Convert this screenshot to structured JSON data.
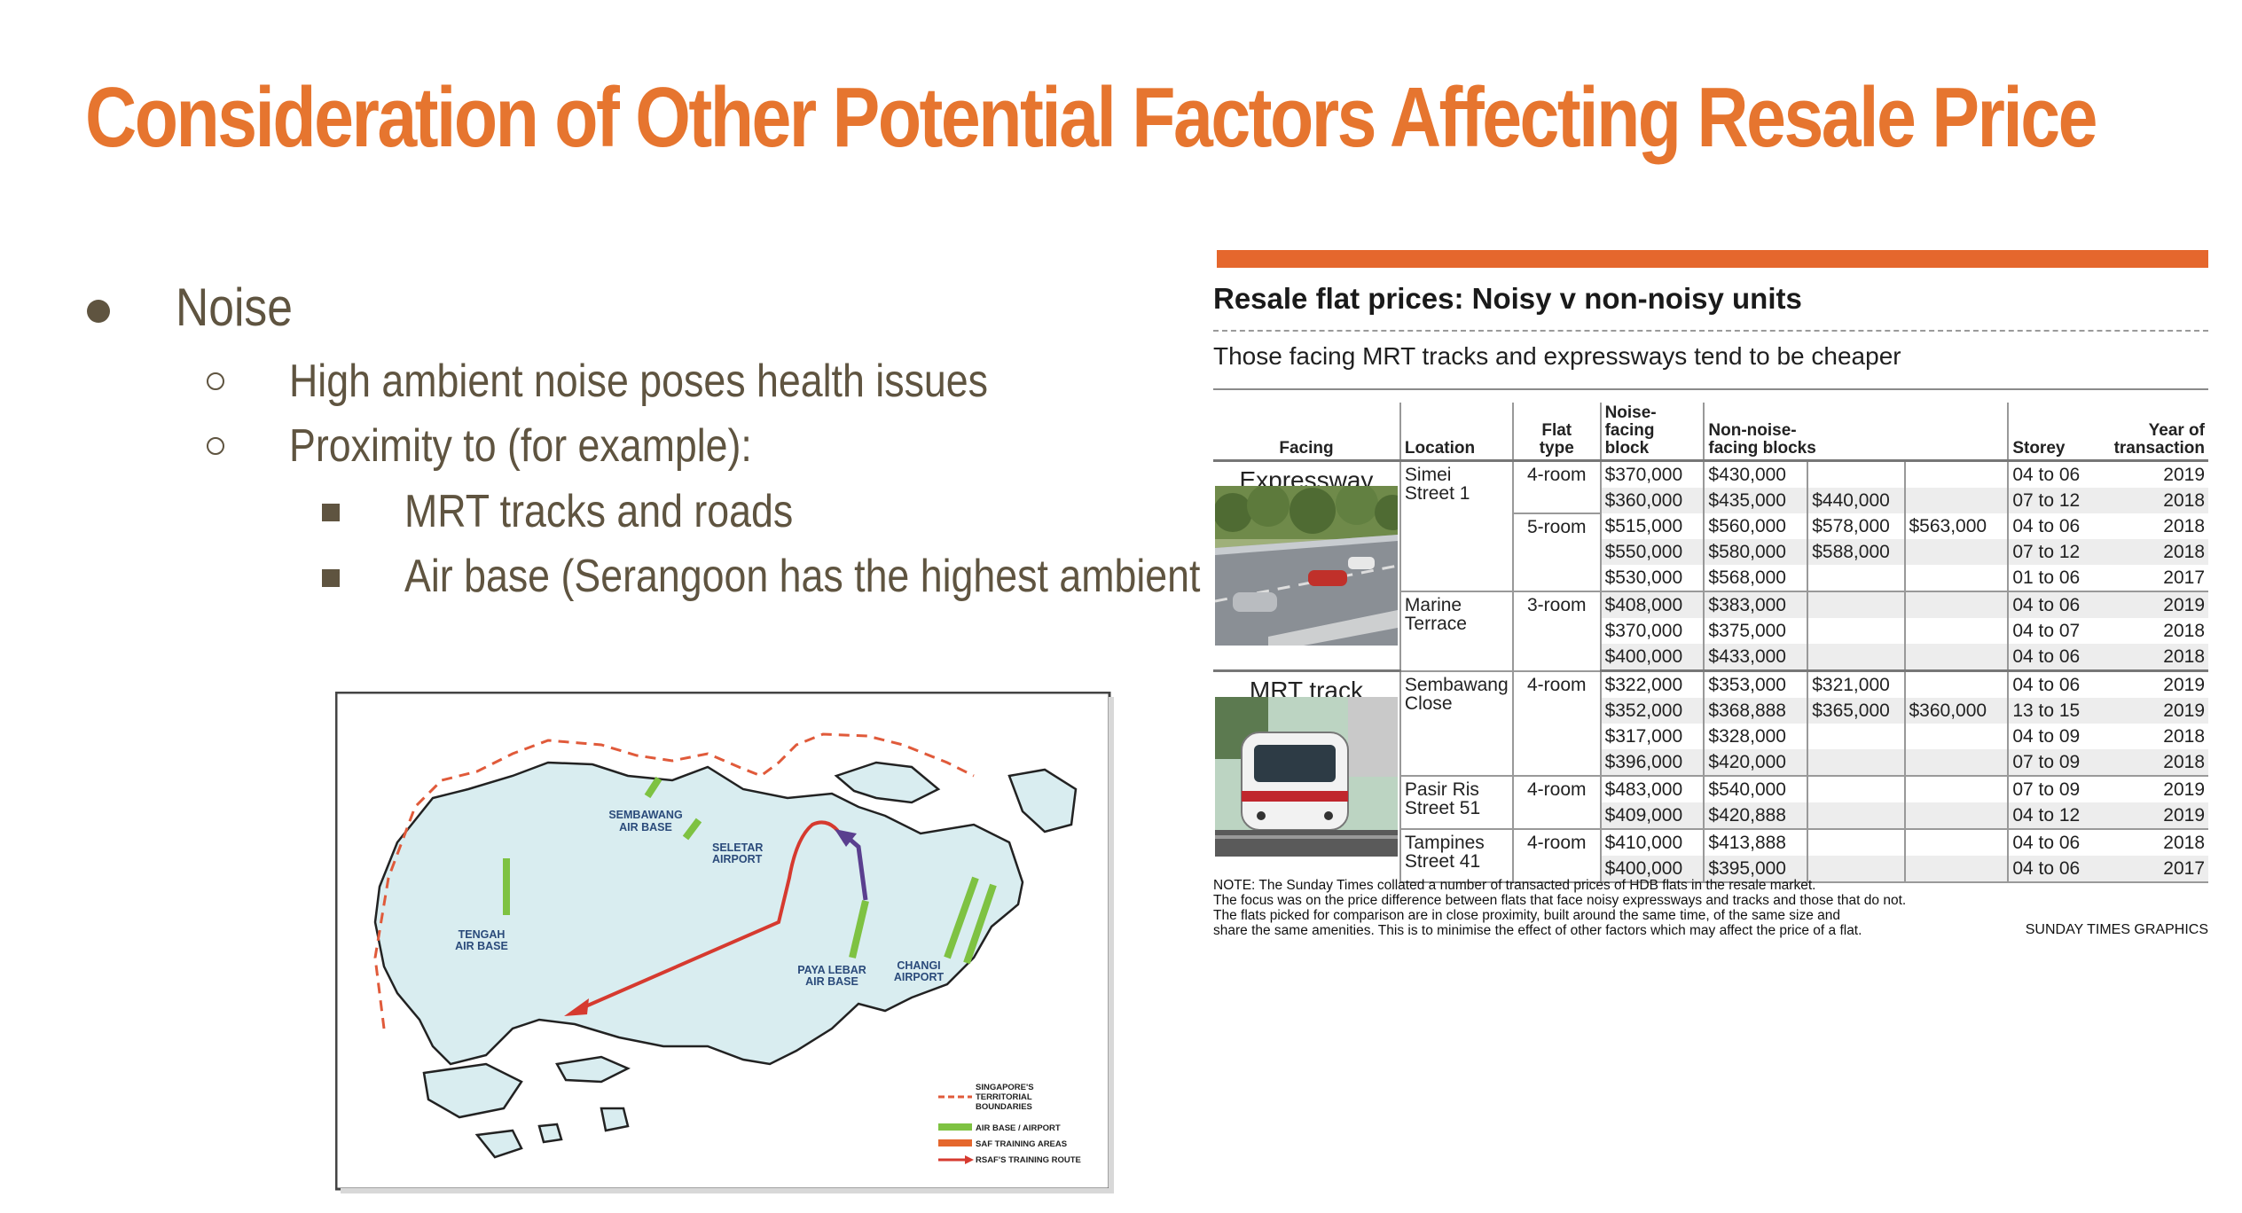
{
  "slide": {
    "title": "Consideration of Other Potential Factors Affecting Resale Price",
    "bullets": [
      {
        "level": 1,
        "text": "Noise"
      },
      {
        "level": 2,
        "text": "High ambient noise poses health issues"
      },
      {
        "level": 2,
        "text": "Proximity to (for example):"
      },
      {
        "level": 3,
        "text": "MRT tracks and roads"
      },
      {
        "level": 3,
        "text": "Air base (Serangoon has the highest ambient nois"
      }
    ]
  },
  "colors": {
    "title": "#e6752f",
    "text": "#5f5440",
    "bar": "#e5672d"
  },
  "article": {
    "heading": "Resale flat prices: Noisy v non-noisy units",
    "subheading": "Those facing MRT tracks and expressways tend to be cheaper",
    "headers": {
      "facing": "Facing",
      "location": "Location",
      "flat_type_1": "Flat",
      "flat_type_2": "type",
      "noise_1": "Noise-",
      "noise_2": "facing block",
      "nonnoise_1": "Non-noise-",
      "nonnoise_2": "facing blocks",
      "storey": "Storey",
      "year_1": "Year of",
      "year_2": "transaction"
    },
    "facing_labels": [
      "Expressway",
      "MRT track"
    ],
    "rows": [
      [
        "$370,000",
        "$430,000",
        "",
        "",
        "04 to 06",
        "2019"
      ],
      [
        "$360,000",
        "$435,000",
        "$440,000",
        "",
        "07 to 12",
        "2018"
      ],
      [
        "$515,000",
        "$560,000",
        "$578,000",
        "$563,000",
        "04 to 06",
        "2018"
      ],
      [
        "$550,000",
        "$580,000",
        "$588,000",
        "",
        "07 to 12",
        "2018"
      ],
      [
        "$530,000",
        "$568,000",
        "",
        "",
        "01 to 06",
        "2017"
      ],
      [
        "$408,000",
        "$383,000",
        "",
        "",
        "04 to 06",
        "2019"
      ],
      [
        "$370,000",
        "$375,000",
        "",
        "",
        "04 to 07",
        "2018"
      ],
      [
        "$400,000",
        "$433,000",
        "",
        "",
        "04 to 06",
        "2018"
      ],
      [
        "$322,000",
        "$353,000",
        "$321,000",
        "",
        "04 to 06",
        "2019"
      ],
      [
        "$352,000",
        "$368,888",
        "$365,000",
        "$360,000",
        "13 to 15",
        "2019"
      ],
      [
        "$317,000",
        "$328,000",
        "",
        "",
        "04 to 09",
        "2018"
      ],
      [
        "$396,000",
        "$420,000",
        "",
        "",
        "07 to 09",
        "2018"
      ],
      [
        "$483,000",
        "$540,000",
        "",
        "",
        "07 to 09",
        "2019"
      ],
      [
        "$409,000",
        "$420,888",
        "",
        "",
        "04 to 12",
        "2019"
      ],
      [
        "$410,000",
        "$413,888",
        "",
        "",
        "04 to 06",
        "2018"
      ],
      [
        "$400,000",
        "$395,000",
        "",
        "",
        "04 to 06",
        "2017"
      ]
    ],
    "locations": {
      "simei_1": "Simei",
      "simei_2": "Street 1",
      "marine_1": "Marine",
      "marine_2": "Terrace",
      "sembawang_1": "Sembawang",
      "sembawang_2": "Close",
      "pasir_1": "Pasir Ris",
      "pasir_2": "Street 51",
      "tampines_1": "Tampines",
      "tampines_2": "Street 41"
    },
    "flat_types": {
      "r1": "4-room",
      "r2": "5-room",
      "r3": "3-room",
      "r4": "4-room",
      "r5": "4-room",
      "r6": "4-room"
    },
    "note": [
      "NOTE: The Sunday Times collated a number of transacted prices of HDB flats in the resale market.",
      "The focus was on the price difference between flats that face noisy expressways and tracks and those that do not.",
      "The flats picked for comparison are in close proximity, built around the same time, of the same size and",
      "share the same amenities. This is to minimise the effect of other factors which may affect the price of a flat."
    ],
    "credit": "SUNDAY TIMES GRAPHICS"
  },
  "map": {
    "labels": {
      "sembawang_1": "SEMBAWANG",
      "sembawang_2": "AIR BASE",
      "seletar_1": "SELETAR",
      "seletar_2": "AIRPORT",
      "tengah_1": "TENGAH",
      "tengah_2": "AIR BASE",
      "paya_1": "PAYA LEBAR",
      "paya_2": "AIR BASE",
      "changi_1": "CHANGI",
      "changi_2": "AIRPORT"
    },
    "legend": {
      "boundary_1": "SINGAPORE'S",
      "boundary_2": "TERRITORIAL",
      "boundary_3": "BOUNDARIES",
      "airbase": "AIR BASE / AIRPORT",
      "training": "SAF TRAINING AREAS",
      "route": "RSAF'S TRAINING ROUTE"
    }
  }
}
